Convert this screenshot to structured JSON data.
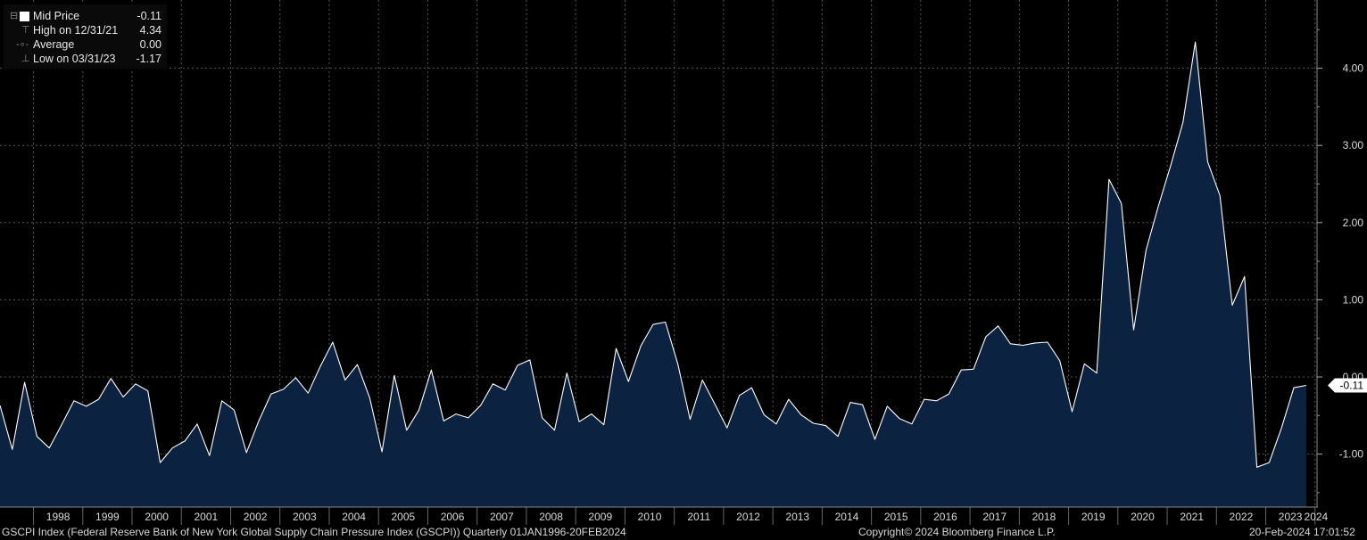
{
  "legend": {
    "rows": [
      {
        "label": "Mid Price",
        "value": "-0.11",
        "icon": "series-square-icon"
      },
      {
        "label": "High on 12/31/21",
        "value": "4.34",
        "icon": "high-marker-icon"
      },
      {
        "label": "Average",
        "value": "0.00",
        "icon": "average-marker-icon"
      },
      {
        "label": "Low on 03/31/23",
        "value": "-1.17",
        "icon": "low-marker-icon"
      }
    ]
  },
  "footer": {
    "left": "GSCPI Index (Federal Reserve Bank of New York Global Supply Chain Pressure Index (GSCPI))  Quarterly 01JAN1996-20FEB2024",
    "center": "Copyright© 2024 Bloomberg Finance L.P.",
    "right": "20-Feb-2024 17:01:52"
  },
  "colors": {
    "background": "#000000",
    "line": "#ffffff",
    "area": "#0b2240",
    "grid": "#555555"
  },
  "chart_data": {
    "type": "area",
    "x_start": "1997-Q1",
    "frequency": "quarterly",
    "series": [
      {
        "name": "Mid Price",
        "values": [
          -0.37,
          -0.94,
          -0.07,
          -0.77,
          -0.92,
          -0.62,
          -0.31,
          -0.38,
          -0.29,
          -0.02,
          -0.26,
          -0.09,
          -0.18,
          -1.11,
          -0.92,
          -0.83,
          -0.61,
          -1.02,
          -0.31,
          -0.43,
          -0.98,
          -0.57,
          -0.22,
          -0.16,
          -0.01,
          -0.21,
          0.14,
          0.45,
          -0.04,
          0.16,
          -0.27,
          -0.97,
          0.02,
          -0.69,
          -0.43,
          0.09,
          -0.57,
          -0.48,
          -0.53,
          -0.37,
          -0.09,
          -0.17,
          0.15,
          0.22,
          -0.53,
          -0.69,
          0.05,
          -0.58,
          -0.48,
          -0.62,
          0.37,
          -0.06,
          0.4,
          0.68,
          0.71,
          0.17,
          -0.55,
          -0.04,
          -0.35,
          -0.66,
          -0.24,
          -0.14,
          -0.49,
          -0.61,
          -0.29,
          -0.49,
          -0.6,
          -0.63,
          -0.77,
          -0.33,
          -0.36,
          -0.81,
          -0.38,
          -0.54,
          -0.61,
          -0.29,
          -0.31,
          -0.22,
          0.09,
          0.1,
          0.52,
          0.66,
          0.43,
          0.41,
          0.44,
          0.45,
          0.21,
          -0.45,
          0.17,
          0.05,
          2.56,
          2.25,
          0.61,
          1.64,
          2.21,
          2.74,
          3.3,
          4.34,
          2.79,
          2.35,
          0.93,
          1.3,
          -1.17,
          -1.11,
          -0.66,
          -0.14,
          -0.11
        ]
      }
    ],
    "last_value_label": "-0.11",
    "x_tick_labels": [
      "1998",
      "1999",
      "2000",
      "2001",
      "2002",
      "2003",
      "2004",
      "2005",
      "2006",
      "2007",
      "2008",
      "2009",
      "2010",
      "2011",
      "2012",
      "2013",
      "2014",
      "2015",
      "2016",
      "2017",
      "2018",
      "2019",
      "2020",
      "2021",
      "2022",
      "2023",
      "2024"
    ],
    "y_ticks": [
      4.0,
      3.0,
      2.0,
      1.0,
      0.0,
      -1.0
    ],
    "y_tick_labels": [
      "4.00",
      "3.00",
      "2.00",
      "1.00",
      "0.00",
      "-1.00"
    ],
    "ylim": [
      -1.7,
      4.9
    ],
    "y_axis_side": "right",
    "grid": true,
    "legend_position": "top-left",
    "title": "",
    "xlabel": "",
    "ylabel": ""
  }
}
